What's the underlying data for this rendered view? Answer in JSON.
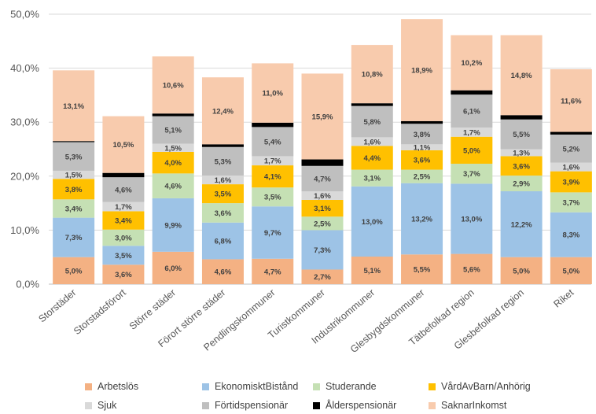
{
  "chart_data": {
    "type": "bar",
    "stacked": true,
    "y_tick_labels": [
      "0,0%",
      "10,0%",
      "20,0%",
      "30,0%",
      "40,0%",
      "50,0%"
    ],
    "ylim": [
      0,
      50
    ],
    "grid": true,
    "legend_placement": "bottom",
    "categories": [
      "Storstäder",
      "Storstadsförort",
      "Större städer",
      "Förort större städer",
      "Pendlingskommuner",
      "Turistkommuner",
      "Industrikommuner",
      "Glesbygdskommuner",
      "Tätbefolkad region",
      "Glesbefolkad region",
      "Riket"
    ],
    "series": [
      {
        "name": "Arbetslös",
        "color": "#F4B183",
        "values": [
          5.0,
          3.6,
          6.0,
          4.6,
          4.7,
          2.7,
          5.1,
          5.5,
          5.6,
          5.0,
          5.0
        ],
        "labels": [
          "5,0%",
          "3,6%",
          "6,0%",
          "4,6%",
          "4,7%",
          "2,7%",
          "5,1%",
          "5,5%",
          "5,6%",
          "5,0%",
          "5,0%"
        ]
      },
      {
        "name": "EkonomisktBistånd",
        "color": "#9DC3E6",
        "values": [
          7.3,
          3.5,
          9.9,
          6.8,
          9.7,
          7.3,
          13.0,
          13.2,
          13.0,
          12.2,
          8.3
        ],
        "labels": [
          "7,3%",
          "3,5%",
          "9,9%",
          "6,8%",
          "9,7%",
          "7,3%",
          "13,0%",
          "13,2%",
          "13,0%",
          "12,2%",
          "8,3%"
        ]
      },
      {
        "name": "Studerande",
        "color": "#C5E0B4",
        "values": [
          3.4,
          3.0,
          4.6,
          3.6,
          3.5,
          2.5,
          3.1,
          2.5,
          3.7,
          2.9,
          3.7
        ],
        "labels": [
          "3,4%",
          "3,0%",
          "4,6%",
          "3,6%",
          "3,5%",
          "2,5%",
          "3,1%",
          "2,5%",
          "3,7%",
          "2,9%",
          "3,7%"
        ]
      },
      {
        "name": "VårdAvBarn/Anhörig",
        "color": "#FFC000",
        "values": [
          3.8,
          3.4,
          4.0,
          3.5,
          4.1,
          3.1,
          4.4,
          3.6,
          5.0,
          3.6,
          3.9
        ],
        "labels": [
          "3,8%",
          "3,4%",
          "4,0%",
          "3,5%",
          "4,1%",
          "3,1%",
          "4,4%",
          "3,6%",
          "5,0%",
          "3,6%",
          "3,9%"
        ]
      },
      {
        "name": "Sjuk",
        "color": "#D9D9D9",
        "values": [
          1.5,
          1.7,
          1.5,
          1.6,
          1.7,
          1.6,
          1.6,
          1.1,
          1.7,
          1.3,
          1.6
        ],
        "labels": [
          "1,5%",
          "1,7%",
          "1,5%",
          "1,6%",
          "1,7%",
          "1,6%",
          "1,6%",
          "1,1%",
          "1,7%",
          "1,3%",
          "1,6%"
        ]
      },
      {
        "name": "Förtidspensionär",
        "color": "#BFBFBF",
        "values": [
          5.3,
          4.6,
          5.1,
          5.3,
          5.4,
          4.7,
          5.8,
          3.8,
          6.1,
          5.5,
          5.2
        ],
        "labels": [
          "5,3%",
          "4,6%",
          "5,1%",
          "5,3%",
          "5,4%",
          "4,7%",
          "5,8%",
          "3,8%",
          "6,1%",
          "5,5%",
          "5,2%"
        ]
      },
      {
        "name": "Ålderspensionär",
        "color": "#000000",
        "values": [
          0.2,
          0.8,
          0.5,
          0.5,
          0.8,
          1.2,
          0.5,
          0.5,
          0.8,
          0.8,
          0.5
        ],
        "labels": [
          "",
          "",
          "",
          "",
          "",
          "",
          "",
          "",
          "",
          "",
          ""
        ]
      },
      {
        "name": "SaknarInkomst",
        "color": "#F8CBAD",
        "values": [
          13.1,
          10.5,
          10.6,
          12.4,
          11.0,
          15.9,
          10.8,
          18.9,
          10.2,
          14.8,
          11.6
        ],
        "labels": [
          "13,1%",
          "10,5%",
          "10,6%",
          "12,4%",
          "11,0%",
          "15,9%",
          "10,8%",
          "18,9%",
          "10,2%",
          "14,8%",
          "11,6%"
        ]
      }
    ]
  }
}
